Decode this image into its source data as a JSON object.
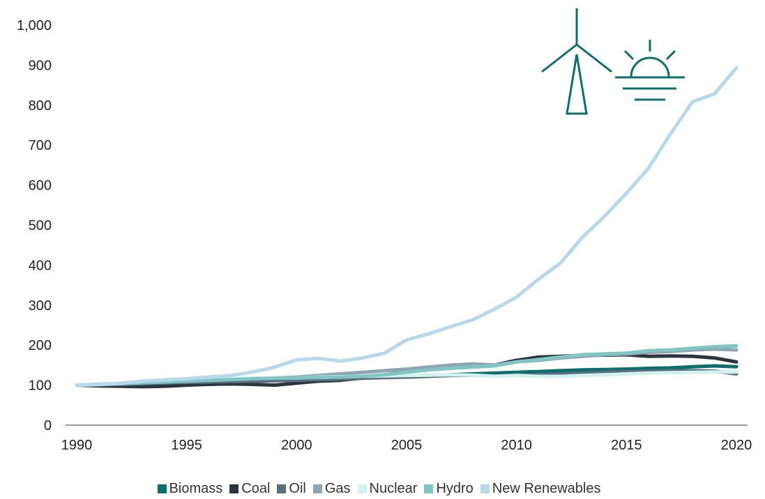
{
  "chart_data": {
    "type": "line",
    "title": "",
    "xlabel": "",
    "ylabel": "",
    "x": [
      1990,
      1991,
      1992,
      1993,
      1994,
      1995,
      1996,
      1997,
      1998,
      1999,
      2000,
      2001,
      2002,
      2003,
      2004,
      2005,
      2006,
      2007,
      2008,
      2009,
      2010,
      2011,
      2012,
      2013,
      2014,
      2015,
      2016,
      2017,
      2018,
      2019,
      2020
    ],
    "xlim": [
      1990,
      2020
    ],
    "ylim": [
      0,
      1000
    ],
    "x_ticks": [
      "1990",
      "1995",
      "2000",
      "2005",
      "2010",
      "2015",
      "2020"
    ],
    "y_ticks": [
      "0",
      "100",
      "200",
      "300",
      "400",
      "500",
      "600",
      "700",
      "800",
      "900",
      "1,000"
    ],
    "grid": false,
    "legend_position": "bottom",
    "series": [
      {
        "name": "Biomass",
        "color": "#0d6e6e",
        "values": [
          100,
          101,
          102,
          104,
          106,
          108,
          110,
          111,
          112,
          113,
          114,
          115,
          116,
          118,
          120,
          122,
          124,
          126,
          128,
          130,
          132,
          134,
          136,
          138,
          139,
          140,
          142,
          143,
          146,
          148,
          146
        ]
      },
      {
        "name": "Coal",
        "color": "#2b3640",
        "values": [
          100,
          98,
          97,
          96,
          97,
          100,
          102,
          103,
          102,
          100,
          105,
          110,
          112,
          118,
          126,
          133,
          140,
          147,
          152,
          150,
          162,
          170,
          172,
          175,
          175,
          176,
          172,
          173,
          172,
          168,
          158
        ]
      },
      {
        "name": "Oil",
        "color": "#5a6f7e",
        "values": [
          100,
          101,
          102,
          104,
          106,
          107,
          108,
          109,
          110,
          111,
          112,
          114,
          115,
          117,
          119,
          120,
          122,
          124,
          125,
          123,
          125,
          126,
          128,
          130,
          132,
          134,
          135,
          136,
          136,
          135,
          128
        ]
      },
      {
        "name": "Gas",
        "color": "#8ea6b4",
        "values": [
          100,
          102,
          104,
          106,
          108,
          110,
          112,
          114,
          116,
          118,
          120,
          124,
          128,
          132,
          136,
          140,
          145,
          150,
          153,
          150,
          158,
          162,
          168,
          172,
          176,
          178,
          182,
          184,
          188,
          190,
          188
        ]
      },
      {
        "name": "Nuclear",
        "color": "#d2f2f2",
        "values": [
          100,
          102,
          104,
          107,
          110,
          112,
          114,
          116,
          117,
          118,
          118,
          120,
          121,
          122,
          123,
          124,
          125,
          126,
          125,
          122,
          124,
          122,
          122,
          124,
          126,
          128,
          130,
          131,
          132,
          133,
          133
        ]
      },
      {
        "name": "Hydro",
        "color": "#7fc6c4",
        "values": [
          100,
          102,
          104,
          106,
          108,
          110,
          112,
          114,
          116,
          117,
          118,
          119,
          120,
          122,
          126,
          132,
          138,
          142,
          145,
          148,
          158,
          164,
          170,
          176,
          178,
          180,
          186,
          188,
          192,
          196,
          198
        ]
      },
      {
        "name": "New Renewables",
        "color": "#b8d8ec",
        "values": [
          100,
          101,
          105,
          110,
          113,
          116,
          120,
          124,
          133,
          145,
          163,
          167,
          160,
          168,
          180,
          213,
          228,
          246,
          263,
          290,
          320,
          365,
          405,
          470,
          522,
          580,
          642,
          728,
          808,
          828,
          893
        ]
      }
    ]
  },
  "legend": {
    "items": [
      "Biomass",
      "Coal",
      "Oil",
      "Gas",
      "Nuclear",
      "Hydro",
      "New Renewables"
    ]
  },
  "decor": {
    "icons": [
      "wind-turbine-icon",
      "sunrise-icon"
    ],
    "icon_color": "#0d6e6e"
  }
}
